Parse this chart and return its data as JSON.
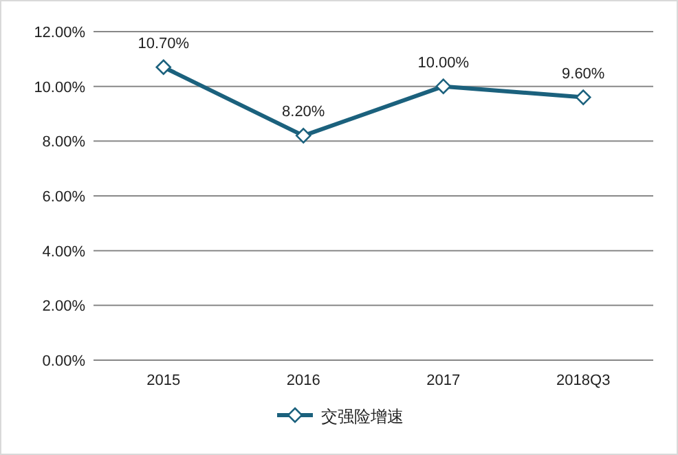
{
  "chart_data": {
    "type": "line",
    "categories": [
      "2015",
      "2016",
      "2017",
      "2018Q3"
    ],
    "series": [
      {
        "name": "交强险增速",
        "color": "#1b617d",
        "values": [
          10.7,
          8.2,
          10.0,
          9.6
        ],
        "value_labels": [
          "10.70%",
          "8.20%",
          "10.00%",
          "9.60%"
        ]
      }
    ],
    "ylim": [
      0,
      12
    ],
    "yticks": [
      {
        "value": 0,
        "label": "0.00%"
      },
      {
        "value": 2,
        "label": "2.00%"
      },
      {
        "value": 4,
        "label": "4.00%"
      },
      {
        "value": 6,
        "label": "6.00%"
      },
      {
        "value": 8,
        "label": "8.00%"
      },
      {
        "value": 10,
        "label": "10.00%"
      },
      {
        "value": 12,
        "label": "12.00%"
      }
    ],
    "grid": "y",
    "legend": "bottom",
    "marker": "diamond",
    "line_style": "solid"
  }
}
